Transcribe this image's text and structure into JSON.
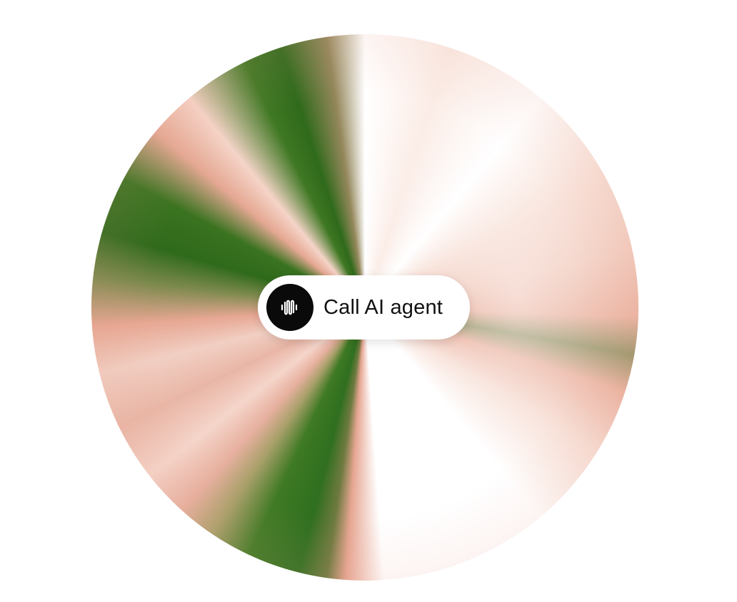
{
  "call_button": {
    "label": "Call AI agent",
    "icon": "waveform-icon"
  },
  "orb": {
    "colors": [
      "#2f6a1b",
      "#e7a793",
      "#f5d4c8",
      "#ffffff",
      "#8f8a5a"
    ]
  }
}
